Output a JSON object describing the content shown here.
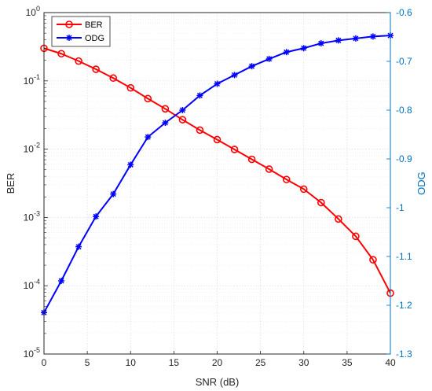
{
  "chart_data": {
    "type": "line",
    "title": "",
    "xlabel": "SNR (dB)",
    "ylabel_left": "BER",
    "ylabel_right": "ODG",
    "x": [
      0,
      2,
      4,
      6,
      8,
      10,
      12,
      14,
      16,
      18,
      20,
      22,
      24,
      26,
      28,
      30,
      32,
      34,
      36,
      38,
      40
    ],
    "xlim": [
      0,
      40
    ],
    "x_ticks": [
      "0",
      "5",
      "10",
      "15",
      "20",
      "25",
      "30",
      "35",
      "40"
    ],
    "y_left_scale": "log",
    "y_left_lim": [
      1e-05,
      1
    ],
    "y_left_ticks": [
      {
        "base": "10",
        "exp": "-5"
      },
      {
        "base": "10",
        "exp": "-4"
      },
      {
        "base": "10",
        "exp": "-3"
      },
      {
        "base": "10",
        "exp": "-2"
      },
      {
        "base": "10",
        "exp": "-1"
      },
      {
        "base": "10",
        "exp": "0"
      }
    ],
    "y_right_lim": [
      -1.3,
      -0.6
    ],
    "y_right_ticks": [
      "-0.6",
      "-0.7",
      "-0.8",
      "-0.9",
      "-1",
      "-1.1",
      "-1.2",
      "-1.3"
    ],
    "grid": true,
    "legend_position": "top-left",
    "series": [
      {
        "name": "BER",
        "axis": "left",
        "color": "#ff0000",
        "marker": "circle",
        "values": [
          0.3,
          0.25,
          0.195,
          0.148,
          0.11,
          0.079,
          0.055,
          0.039,
          0.027,
          0.019,
          0.0138,
          0.0099,
          0.0071,
          0.0051,
          0.0036,
          0.0026,
          0.00165,
          0.00095,
          0.00053,
          0.00024,
          7.8e-05
        ]
      },
      {
        "name": "ODG",
        "axis": "right",
        "color": "#0000ff",
        "marker": "star",
        "values": [
          -1.215,
          -1.15,
          -1.08,
          -1.018,
          -0.972,
          -0.912,
          -0.855,
          -0.826,
          -0.8,
          -0.77,
          -0.746,
          -0.728,
          -0.71,
          -0.695,
          -0.681,
          -0.673,
          -0.663,
          -0.657,
          -0.653,
          -0.649,
          -0.647
        ]
      }
    ]
  }
}
